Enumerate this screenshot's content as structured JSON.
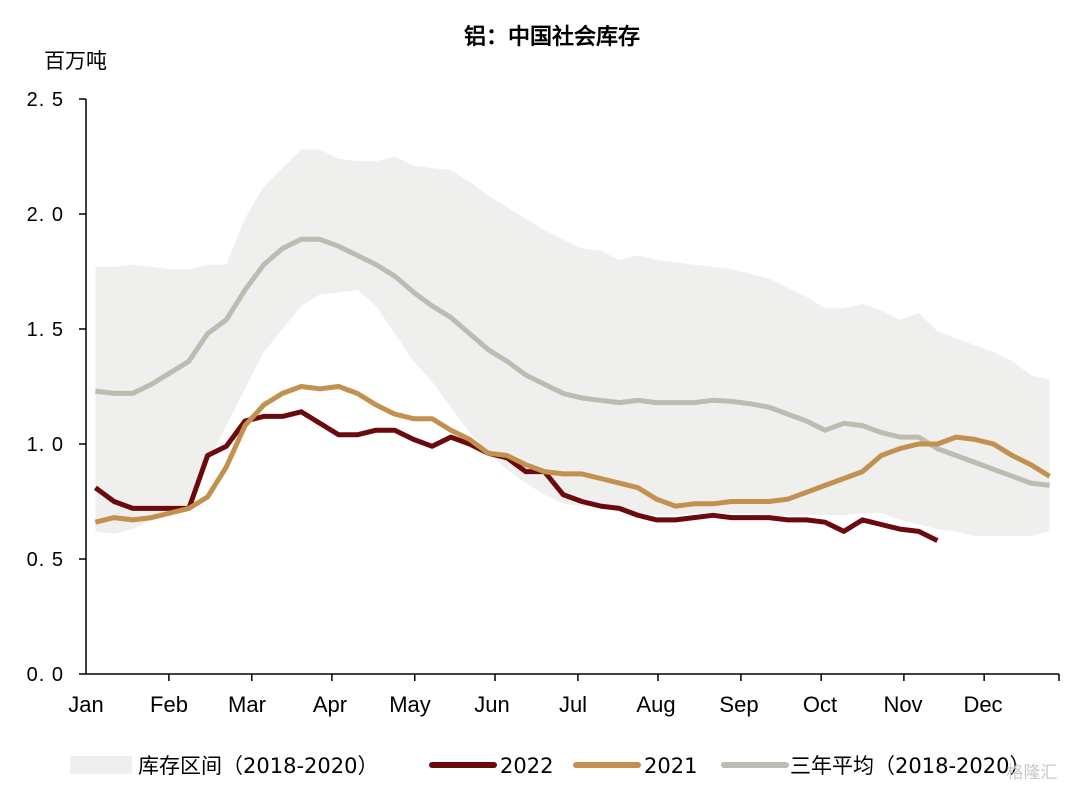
{
  "chart_data": {
    "type": "line",
    "title": "铝：中国社会库存",
    "ylabel": "百万吨",
    "ylim": [
      0,
      2.5
    ],
    "yticks": [
      0.0,
      0.5,
      1.0,
      1.5,
      2.0,
      2.5
    ],
    "ytick_labels": [
      "0. 0",
      "0. 5",
      "1. 0",
      "1. 5",
      "2. 0",
      "2. 5"
    ],
    "x_tick_labels": [
      "Jan",
      "Feb",
      "Mar",
      "Apr",
      "May",
      "Jun",
      "Jul",
      "Aug",
      "Sep",
      "Oct",
      "Nov",
      "Dec"
    ],
    "x_unit": "week of year (1-52)",
    "grid": false,
    "legend_position": "bottom",
    "band": {
      "name": "库存区间（2018-2020）",
      "color": "#efefed",
      "x": [
        1,
        2,
        3,
        4,
        5,
        6,
        7,
        8,
        9,
        10,
        11,
        12,
        13,
        14,
        15,
        16,
        17,
        18,
        19,
        20,
        21,
        22,
        23,
        24,
        25,
        26,
        27,
        28,
        29,
        30,
        31,
        32,
        33,
        34,
        35,
        36,
        37,
        38,
        39,
        40,
        41,
        42,
        43,
        44,
        45,
        46,
        47,
        48,
        49,
        50,
        51,
        52
      ],
      "upper": [
        1.77,
        1.77,
        1.78,
        1.77,
        1.76,
        1.76,
        1.78,
        1.78,
        1.98,
        2.12,
        2.2,
        2.28,
        2.28,
        2.24,
        2.23,
        2.23,
        2.25,
        2.21,
        2.2,
        2.19,
        2.14,
        2.08,
        2.03,
        1.98,
        1.93,
        1.89,
        1.85,
        1.84,
        1.8,
        1.82,
        1.8,
        1.79,
        1.78,
        1.77,
        1.76,
        1.74,
        1.72,
        1.68,
        1.64,
        1.59,
        1.59,
        1.61,
        1.58,
        1.54,
        1.57,
        1.49,
        1.46,
        1.43,
        1.4,
        1.36,
        1.3,
        1.28
      ],
      "lower": [
        0.62,
        0.61,
        0.63,
        0.67,
        0.7,
        0.73,
        0.92,
        1.08,
        1.24,
        1.4,
        1.5,
        1.6,
        1.65,
        1.66,
        1.67,
        1.6,
        1.48,
        1.36,
        1.27,
        1.16,
        1.05,
        0.96,
        0.89,
        0.83,
        0.78,
        0.74,
        0.73,
        0.73,
        0.72,
        0.7,
        0.69,
        0.69,
        0.7,
        0.7,
        0.7,
        0.7,
        0.69,
        0.69,
        0.69,
        0.69,
        0.69,
        0.7,
        0.7,
        0.67,
        0.65,
        0.63,
        0.62,
        0.6,
        0.6,
        0.6,
        0.6,
        0.62
      ]
    },
    "series": [
      {
        "name": "三年平均（2018-2020）",
        "color": "#bdbcb1",
        "x": [
          1,
          2,
          3,
          4,
          5,
          6,
          7,
          8,
          9,
          10,
          11,
          12,
          13,
          14,
          15,
          16,
          17,
          18,
          19,
          20,
          21,
          22,
          23,
          24,
          25,
          26,
          27,
          28,
          29,
          30,
          31,
          32,
          33,
          34,
          35,
          36,
          37,
          38,
          39,
          40,
          41,
          42,
          43,
          44,
          45,
          46,
          47,
          48,
          49,
          50,
          51,
          52
        ],
        "values": [
          1.23,
          1.22,
          1.22,
          1.26,
          1.31,
          1.36,
          1.48,
          1.54,
          1.67,
          1.78,
          1.85,
          1.89,
          1.89,
          1.86,
          1.82,
          1.78,
          1.73,
          1.66,
          1.6,
          1.55,
          1.48,
          1.41,
          1.36,
          1.3,
          1.26,
          1.22,
          1.2,
          1.19,
          1.18,
          1.19,
          1.18,
          1.18,
          1.18,
          1.19,
          1.185,
          1.175,
          1.16,
          1.13,
          1.1,
          1.06,
          1.09,
          1.08,
          1.05,
          1.03,
          1.03,
          0.98,
          0.95,
          0.92,
          0.89,
          0.86,
          0.83,
          0.82
        ]
      },
      {
        "name": "2022",
        "color": "#6b0a0e",
        "x": [
          1,
          2,
          3,
          4,
          5,
          6,
          7,
          8,
          9,
          10,
          11,
          12,
          13,
          14,
          15,
          16,
          17,
          18,
          19,
          20,
          21,
          22,
          23,
          24,
          25,
          26,
          27,
          28,
          29,
          30,
          31,
          32,
          33,
          34,
          35,
          36,
          37,
          38,
          39,
          40,
          41,
          42,
          43,
          44,
          45,
          46
        ],
        "values": [
          0.81,
          0.75,
          0.72,
          0.72,
          0.72,
          0.72,
          0.95,
          0.99,
          1.1,
          1.12,
          1.12,
          1.14,
          1.09,
          1.04,
          1.04,
          1.06,
          1.06,
          1.02,
          0.99,
          1.03,
          1.0,
          0.96,
          0.94,
          0.88,
          0.88,
          0.78,
          0.75,
          0.73,
          0.72,
          0.69,
          0.67,
          0.67,
          0.68,
          0.69,
          0.68,
          0.68,
          0.68,
          0.67,
          0.67,
          0.66,
          0.62,
          0.67,
          0.65,
          0.63,
          0.62,
          0.58
        ]
      },
      {
        "name": "2021",
        "color": "#c2904f",
        "x": [
          1,
          2,
          3,
          4,
          5,
          6,
          7,
          8,
          9,
          10,
          11,
          12,
          13,
          14,
          15,
          16,
          17,
          18,
          19,
          20,
          21,
          22,
          23,
          24,
          25,
          26,
          27,
          28,
          29,
          30,
          31,
          32,
          33,
          34,
          35,
          36,
          37,
          38,
          39,
          40,
          41,
          42,
          43,
          44,
          45,
          46,
          47,
          48,
          49,
          50,
          51,
          52
        ],
        "values": [
          0.66,
          0.68,
          0.67,
          0.68,
          0.7,
          0.72,
          0.77,
          0.9,
          1.08,
          1.17,
          1.22,
          1.25,
          1.24,
          1.25,
          1.22,
          1.17,
          1.13,
          1.11,
          1.11,
          1.06,
          1.02,
          0.96,
          0.95,
          0.91,
          0.88,
          0.87,
          0.87,
          0.85,
          0.83,
          0.81,
          0.76,
          0.73,
          0.74,
          0.74,
          0.75,
          0.75,
          0.75,
          0.76,
          0.79,
          0.82,
          0.85,
          0.88,
          0.95,
          0.98,
          1.0,
          1.0,
          1.03,
          1.02,
          1.0,
          0.95,
          0.91,
          0.86
        ]
      }
    ],
    "legend": [
      {
        "label": "库存区间（2018-2020）",
        "kind": "band",
        "color": "#efefed"
      },
      {
        "label": "2022",
        "kind": "line",
        "color": "#6b0a0e"
      },
      {
        "label": "2021",
        "kind": "line",
        "color": "#c2904f"
      },
      {
        "label": "三年平均（2018-2020）",
        "kind": "line",
        "color": "#bdbcb1"
      }
    ],
    "watermark": "格隆汇"
  }
}
